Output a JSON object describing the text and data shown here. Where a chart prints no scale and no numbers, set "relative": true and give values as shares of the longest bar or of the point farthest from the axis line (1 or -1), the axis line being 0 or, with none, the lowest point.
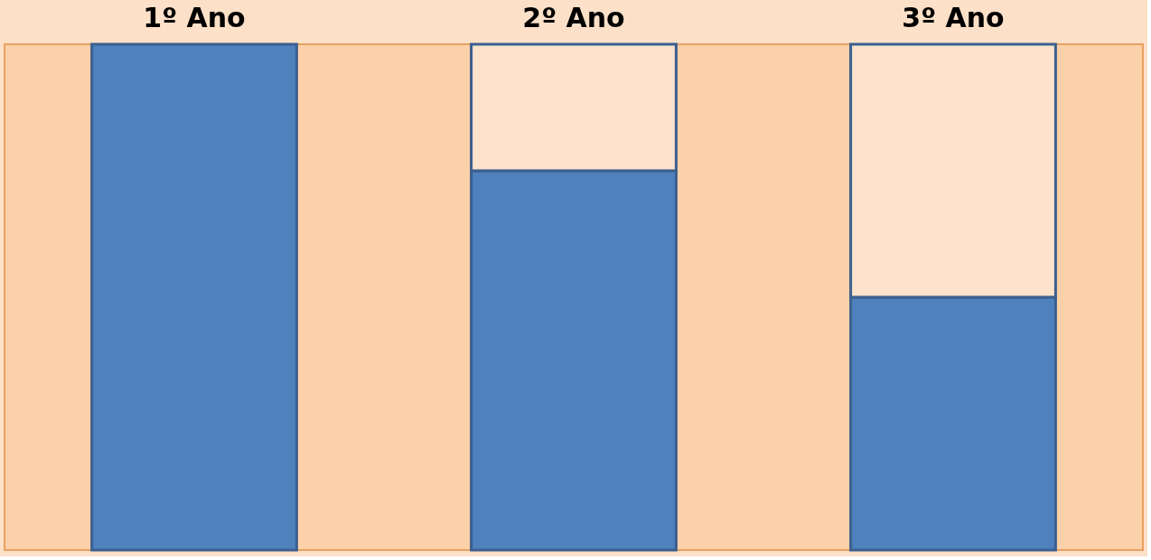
{
  "chart_data": {
    "type": "bar",
    "stacked": true,
    "relative": true,
    "categories": [
      "1º Ano",
      "2º Ano",
      "3º Ano"
    ],
    "series": [
      {
        "color": "#4f81bd",
        "values": [
          1,
          0.75,
          0.5
        ]
      },
      {
        "color": "#fde3cc",
        "values": [
          0,
          0.25,
          0.5
        ]
      }
    ]
  }
}
